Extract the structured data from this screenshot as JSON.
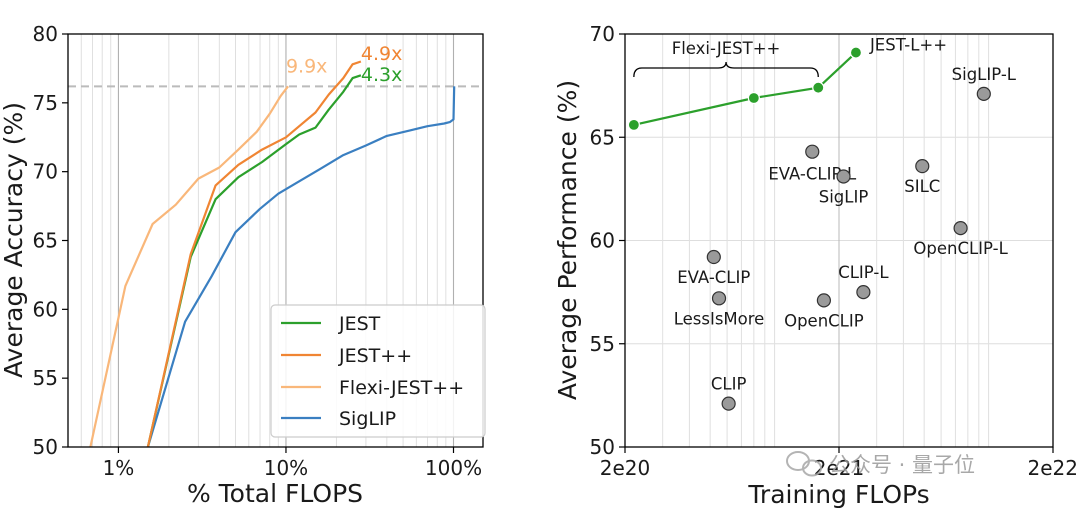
{
  "chart_data": [
    {
      "type": "line",
      "xlabel": "% Total FLOPS",
      "ylabel": "Average Accuracy (%)",
      "xscale": "log",
      "xlim": [
        0.5,
        150
      ],
      "ylim": [
        50,
        80
      ],
      "xticks": [
        1,
        10,
        100
      ],
      "xtick_labels": [
        "1%",
        "10%",
        "100%"
      ],
      "yticks": [
        50,
        55,
        60,
        65,
        70,
        75,
        80
      ],
      "ytick_labels": [
        "50",
        "55",
        "60",
        "65",
        "70",
        "75",
        "80"
      ],
      "grid": "vertical-minor",
      "legend_position": "lower-right",
      "reference_line": {
        "y": 76.2,
        "style": "dashed",
        "color": "#bbbbbb"
      },
      "series": [
        {
          "name": "JEST",
          "color": "#2ca02c",
          "x": [
            1.5,
            2.7,
            3.8,
            5.2,
            7.2,
            10,
            12,
            15,
            18,
            22,
            25,
            28
          ],
          "y": [
            50,
            63.8,
            68.0,
            69.6,
            70.7,
            72.0,
            72.7,
            73.2,
            74.5,
            75.8,
            76.8,
            77.0
          ]
        },
        {
          "name": "JEST++",
          "color": "#f08533",
          "x": [
            1.5,
            2.7,
            3.8,
            5.2,
            7.2,
            10,
            12,
            15,
            18,
            22,
            25,
            28
          ],
          "y": [
            50,
            64.0,
            69.0,
            70.5,
            71.6,
            72.5,
            73.3,
            74.3,
            75.6,
            76.8,
            77.8,
            78.0
          ]
        },
        {
          "name": "Flexi-JEST++",
          "color": "#f9b77a",
          "x": [
            0.68,
            1.1,
            1.6,
            2.2,
            3.0,
            4.0,
            5.2,
            6.7,
            8.0,
            9.3,
            10.3
          ],
          "y": [
            50,
            61.7,
            66.2,
            67.6,
            69.5,
            70.3,
            71.6,
            72.9,
            74.2,
            75.5,
            76.2
          ]
        },
        {
          "name": "SigLIP",
          "color": "#3a7fc1",
          "x": [
            1.5,
            2.5,
            3.6,
            5.0,
            7.0,
            9.0,
            12,
            16,
            22,
            30,
            40,
            55,
            70,
            88,
            95,
            100,
            101
          ],
          "y": [
            50,
            59.1,
            62.4,
            65.6,
            67.3,
            68.4,
            69.3,
            70.2,
            71.2,
            71.9,
            72.6,
            73.0,
            73.3,
            73.5,
            73.6,
            73.8,
            76.2
          ]
        }
      ],
      "annotations": [
        {
          "text": "9.9x",
          "color": "#f9b77a",
          "x": 10,
          "y": 77.2
        },
        {
          "text": "4.9x",
          "color": "#f08533",
          "x": 28,
          "y": 78.1
        },
        {
          "text": "4.3x",
          "color": "#2ca02c",
          "x": 28,
          "y": 76.6
        }
      ]
    },
    {
      "type": "scatter",
      "xlabel": "Training FLOPs",
      "ylabel": "Average Performance (%)",
      "xscale": "log",
      "xlim": [
        2e+20,
        2e+22
      ],
      "ylim": [
        50,
        70
      ],
      "xticks": [
        2e+20,
        2e+21,
        2e+22
      ],
      "xtick_labels": [
        "2e20",
        "2e21",
        "2e22"
      ],
      "yticks": [
        50,
        55,
        60,
        65,
        70
      ],
      "ytick_labels": [
        "50",
        "55",
        "60",
        "65",
        "70"
      ],
      "grid": "both",
      "points": [
        {
          "label": "SigLIP-L",
          "x": 9.5e+21,
          "y": 67.1
        },
        {
          "label": "EVA-CLIP-L",
          "x": 1.5e+21,
          "y": 64.3
        },
        {
          "label": "SigLIP",
          "x": 2.1e+21,
          "y": 63.1
        },
        {
          "label": "SILC",
          "x": 4.9e+21,
          "y": 63.6
        },
        {
          "label": "OpenCLIP-L",
          "x": 7.4e+21,
          "y": 60.6
        },
        {
          "label": "EVA-CLIP",
          "x": 5.2e+20,
          "y": 59.2
        },
        {
          "label": "CLIP-L",
          "x": 2.6e+21,
          "y": 57.5
        },
        {
          "label": "LessIsMore",
          "x": 5.5e+20,
          "y": 57.2
        },
        {
          "label": "OpenCLIP",
          "x": 1.7e+21,
          "y": 57.1
        },
        {
          "label": "CLIP",
          "x": 6.1e+20,
          "y": 52.1
        }
      ],
      "series": [
        {
          "name": "Flexi-JEST++",
          "color": "#2ca02c",
          "x": [
            2.2e+20,
            8e+20,
            1.6e+21
          ],
          "y": [
            65.6,
            66.9,
            67.4
          ]
        },
        {
          "name": "JEST-L++",
          "color": "#2ca02c",
          "x": [
            1.6e+21,
            2.4e+21
          ],
          "y": [
            67.4,
            69.1
          ]
        }
      ],
      "series_labels": [
        "Flexi-JEST++",
        "JEST-L++"
      ]
    }
  ],
  "watermark": "公众号 · 量子位"
}
